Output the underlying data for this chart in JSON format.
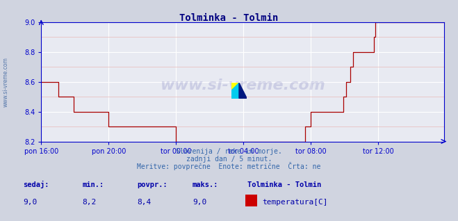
{
  "title": "Tolminka - Tolmin",
  "title_color": "#000080",
  "bg_color": "#d0d4e0",
  "plot_bg_color": "#e8eaf2",
  "grid_color_major": "#ffffff",
  "grid_color_minor": "#e8b8b8",
  "line_color": "#aa0000",
  "axis_color": "#0000cc",
  "tick_color": "#0000cc",
  "ylim": [
    8.2,
    9.0
  ],
  "yticks": [
    8.2,
    8.4,
    8.6,
    8.8,
    9.0
  ],
  "xtick_labels": [
    "pon 16:00",
    "pon 20:00",
    "tor 00:00",
    "tor 04:00",
    "tor 08:00",
    "tor 12:00"
  ],
  "xtick_positions": [
    0,
    48,
    96,
    144,
    192,
    240
  ],
  "total_points": 288,
  "subtitle1": "Slovenija / reke in morje.",
  "subtitle2": "zadnji dan / 5 minut.",
  "subtitle3": "Meritve: povprečne  Enote: metrične  Črta: ne",
  "subtitle_color": "#3366aa",
  "label_sedaj": "sedaj:",
  "label_min": "min.:",
  "label_povpr": "povpr.:",
  "label_maks": "maks.:",
  "val_sedaj": "9,0",
  "val_min": "8,2",
  "val_povpr": "8,4",
  "val_maks": "9,0",
  "legend_title": "Tolminka - Tolmin",
  "legend_item": "temperatura[C]",
  "legend_color": "#cc0000",
  "watermark_text": "www.si-vreme.com",
  "left_text": "www.si-vreme.com",
  "data_values": [
    8.6,
    8.6,
    8.6,
    8.6,
    8.6,
    8.6,
    8.6,
    8.6,
    8.6,
    8.6,
    8.6,
    8.6,
    8.5,
    8.5,
    8.5,
    8.5,
    8.5,
    8.5,
    8.5,
    8.5,
    8.5,
    8.5,
    8.5,
    8.4,
    8.4,
    8.4,
    8.4,
    8.4,
    8.4,
    8.4,
    8.4,
    8.4,
    8.4,
    8.4,
    8.4,
    8.4,
    8.4,
    8.4,
    8.4,
    8.4,
    8.4,
    8.4,
    8.4,
    8.4,
    8.4,
    8.4,
    8.4,
    8.4,
    8.3,
    8.3,
    8.3,
    8.3,
    8.3,
    8.3,
    8.3,
    8.3,
    8.3,
    8.3,
    8.3,
    8.3,
    8.3,
    8.3,
    8.3,
    8.3,
    8.3,
    8.3,
    8.3,
    8.3,
    8.3,
    8.3,
    8.3,
    8.3,
    8.3,
    8.3,
    8.3,
    8.3,
    8.3,
    8.3,
    8.3,
    8.3,
    8.3,
    8.3,
    8.3,
    8.3,
    8.3,
    8.3,
    8.3,
    8.3,
    8.3,
    8.3,
    8.3,
    8.3,
    8.3,
    8.3,
    8.3,
    8.3,
    8.2,
    8.2,
    8.2,
    8.2,
    8.2,
    8.2,
    8.2,
    8.2,
    8.2,
    8.2,
    8.2,
    8.2,
    8.2,
    8.2,
    8.2,
    8.2,
    8.2,
    8.2,
    8.2,
    8.2,
    8.2,
    8.2,
    8.2,
    8.2,
    8.2,
    8.2,
    8.2,
    8.2,
    8.2,
    8.2,
    8.2,
    8.2,
    8.2,
    8.2,
    8.2,
    8.2,
    8.2,
    8.2,
    8.2,
    8.2,
    8.2,
    8.2,
    8.2,
    8.2,
    8.2,
    8.2,
    8.2,
    8.2,
    8.2,
    8.2,
    8.2,
    8.2,
    8.2,
    8.2,
    8.2,
    8.2,
    8.2,
    8.2,
    8.2,
    8.2,
    8.2,
    8.2,
    8.2,
    8.2,
    8.2,
    8.2,
    8.2,
    8.2,
    8.2,
    8.2,
    8.2,
    8.2,
    8.2,
    8.2,
    8.2,
    8.2,
    8.2,
    8.2,
    8.2,
    8.2,
    8.2,
    8.2,
    8.2,
    8.2,
    8.2,
    8.2,
    8.2,
    8.2,
    8.2,
    8.2,
    8.2,
    8.2,
    8.3,
    8.3,
    8.3,
    8.3,
    8.4,
    8.4,
    8.4,
    8.4,
    8.4,
    8.4,
    8.4,
    8.4,
    8.4,
    8.4,
    8.4,
    8.4,
    8.4,
    8.4,
    8.4,
    8.4,
    8.4,
    8.4,
    8.4,
    8.4,
    8.4,
    8.4,
    8.4,
    8.5,
    8.5,
    8.6,
    8.6,
    8.6,
    8.7,
    8.7,
    8.8,
    8.8,
    8.8,
    8.8,
    8.8,
    8.8,
    8.8,
    8.8,
    8.8,
    8.8,
    8.8,
    8.8,
    8.8,
    8.8,
    8.8,
    8.9,
    9.0,
    9.0,
    9.0,
    9.0,
    9.0,
    9.0,
    9.0,
    9.0,
    9.0,
    9.0,
    9.0,
    9.0,
    9.0,
    9.0,
    9.0,
    9.0,
    9.0,
    9.0,
    9.0,
    9.0,
    9.0,
    9.0,
    9.0,
    9.0,
    9.0,
    9.0,
    9.0,
    9.0,
    9.0,
    9.0,
    9.0,
    9.0,
    9.0,
    9.0,
    9.0,
    9.0,
    9.0,
    9.0,
    9.0,
    9.0,
    9.0,
    9.0,
    9.0,
    9.0,
    9.0,
    9.0,
    9.0,
    9.0,
    9.0,
    9.0
  ]
}
